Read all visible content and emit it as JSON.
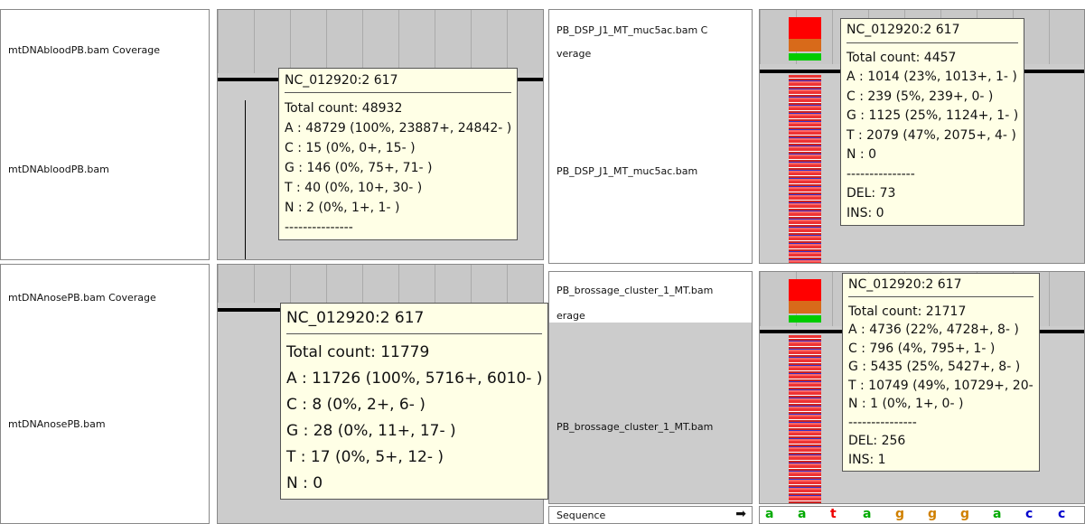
{
  "panels": [
    {
      "track_labels": [
        "mtDNAbloodPB.bam Coverage",
        "mtDNAbloodPB.bam"
      ],
      "tooltip": [
        "NC_012920:2 617",
        "Total count: 48932",
        "A : 48729 (100%, 23887+, 24842- )",
        "C : 15 (0%, 0+, 15- )",
        "G : 146 (0%, 75+, 71- )",
        "T : 40 (0%, 10+, 30- )",
        "N : 2 (0%, 1+, 1- )",
        "---------------"
      ]
    },
    {
      "track_labels": [
        "mtDNAnosePB.bam Coverage",
        "mtDNAnosePB.bam"
      ],
      "tooltip": [
        "NC_012920:2 617",
        "Total count: 11779",
        "A : 11726 (100%, 5716+, 6010- )",
        "C : 8 (0%, 2+, 6- )",
        "G : 28 (0%, 11+, 17- )",
        "T : 17 (0%, 5+, 12- )",
        "N : 0"
      ]
    },
    {
      "track_labels": [
        "PB_DSP_J1_MT_muc5ac.bam C",
        "verage",
        "PB_DSP_J1_MT_muc5ac.bam"
      ],
      "tooltip": [
        "NC_012920:2 617",
        "Total count: 4457",
        "A : 1014 (23%, 1013+, 1- )",
        "C : 239 (5%, 239+, 0- )",
        "G : 1125 (25%, 1124+, 1- )",
        "T : 2079 (47%, 2075+, 4- )",
        "N : 0",
        "---------------",
        "DEL: 73",
        "INS: 0"
      ]
    },
    {
      "track_labels": [
        "PB_brossage_cluster_1_MT.bam",
        "erage",
        "PB_brossage_cluster_1_MT.bam"
      ],
      "tooltip": [
        "NC_012920:2 617",
        "Total count: 21717",
        "A : 4736 (22%, 4728+, 8- )",
        "C : 796 (4%, 795+, 1- )",
        "G : 5435 (25%, 5427+, 8- )",
        "T : 10749 (49%, 10729+, 20-",
        "N : 1 (0%, 1+, 0- )",
        "---------------",
        "DEL: 256",
        "INS: 1"
      ]
    }
  ],
  "sequence": {
    "label": "Sequence",
    "bases": [
      "a",
      "a",
      "t",
      "a",
      "g",
      "g",
      "g",
      "a",
      "c",
      "c"
    ]
  }
}
